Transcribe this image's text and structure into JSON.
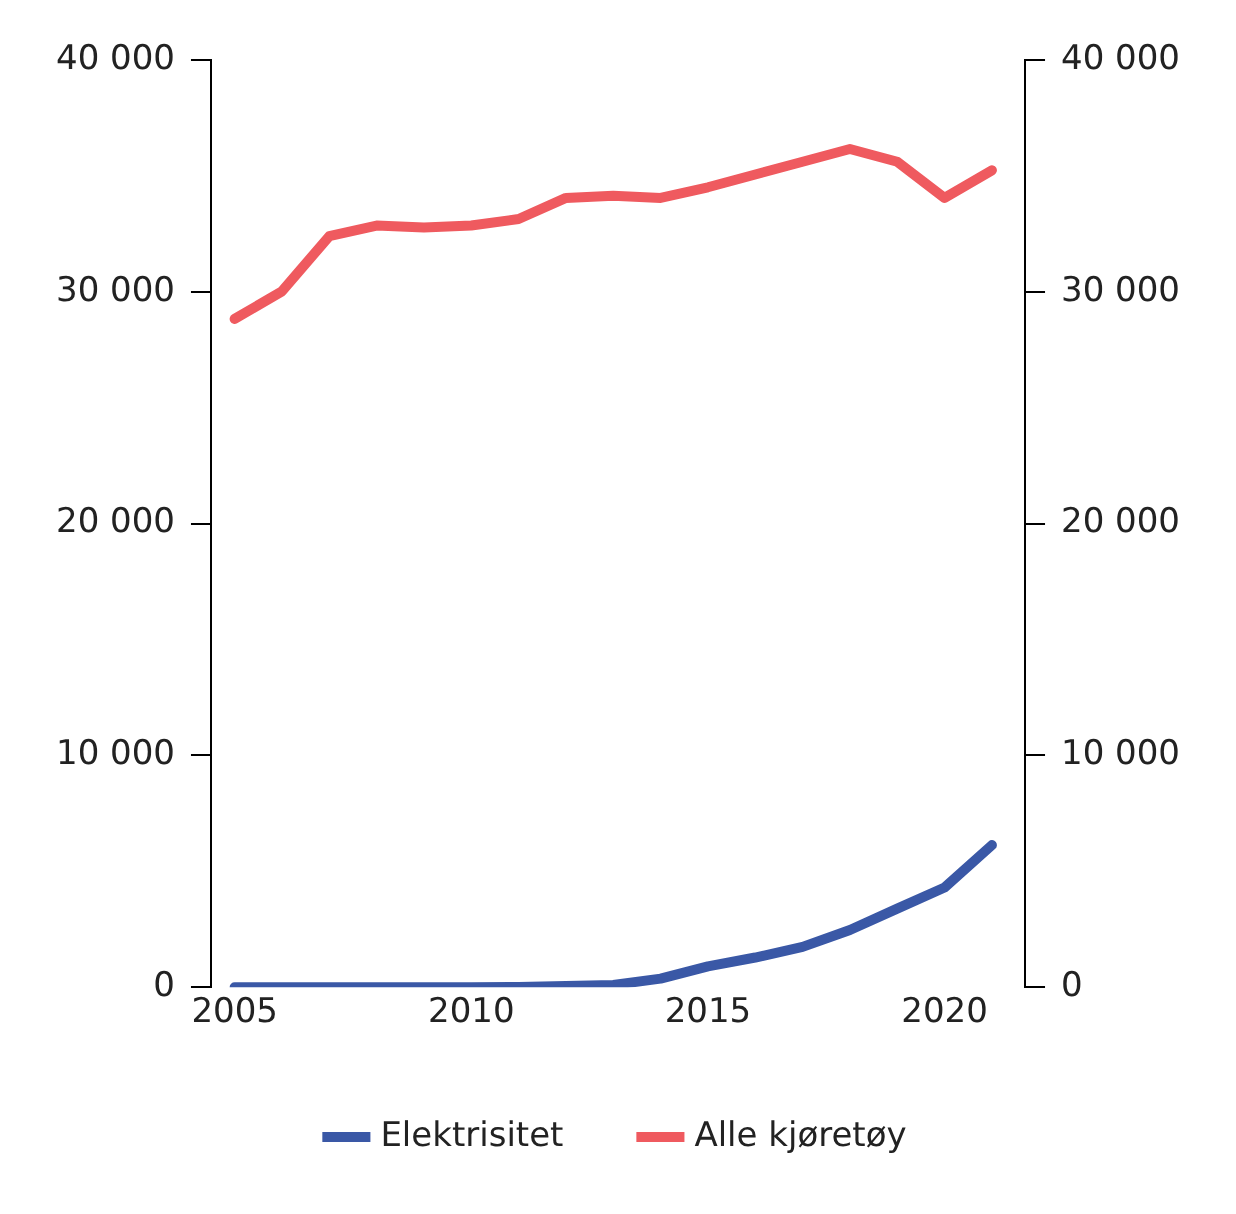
{
  "chart_data": {
    "type": "line",
    "x": [
      2005,
      2006,
      2007,
      2008,
      2009,
      2010,
      2011,
      2012,
      2013,
      2014,
      2015,
      2016,
      2017,
      2018,
      2019,
      2020,
      2021
    ],
    "series": [
      {
        "name": "Elektrisitet",
        "color": "#3a58a6",
        "values": [
          0,
          0,
          0,
          0,
          0,
          0,
          10,
          50,
          100,
          370,
          900,
          1280,
          1740,
          2470,
          3390,
          4300,
          6130
        ]
      },
      {
        "name": "Alle kjøretøy",
        "color": "#ef5a5f",
        "values": [
          28830,
          30020,
          32400,
          32860,
          32770,
          32860,
          33140,
          34050,
          34140,
          34050,
          34510,
          35060,
          35610,
          36160,
          35610,
          34050,
          35240
        ]
      }
    ],
    "xlim": [
      2004.5,
      2021.7
    ],
    "xticks": [
      2005,
      2010,
      2015,
      2020
    ],
    "ylim": [
      0,
      40000
    ],
    "yticks": [
      {
        "value": 0,
        "label": "0"
      },
      {
        "value": 10000,
        "label": "10 000"
      },
      {
        "value": 20000,
        "label": "20 000"
      },
      {
        "value": 30000,
        "label": "30 000"
      },
      {
        "value": 40000,
        "label": "40 000"
      }
    ],
    "y2lim": [
      0,
      40000
    ],
    "y2ticks": [
      {
        "value": 0,
        "label": "0"
      },
      {
        "value": 10000,
        "label": "10 000"
      },
      {
        "value": 20000,
        "label": "20 000"
      },
      {
        "value": 30000,
        "label": "30 000"
      },
      {
        "value": 40000,
        "label": "40 000"
      }
    ],
    "grid": false,
    "legend": "bottom",
    "marker": "none",
    "line_style": "solid"
  }
}
